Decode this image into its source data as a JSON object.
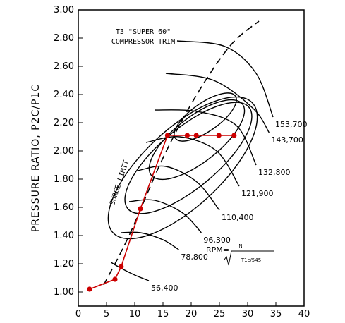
{
  "chart_data": {
    "type": "line",
    "title": "T3 \"SUPER 60\"",
    "subtitle": "COMPRESSOR TRIM",
    "xlabel": "",
    "ylabel": "PRESSURE RATIO, P2C/P1C",
    "xlim": [
      0,
      40
    ],
    "ylim": [
      0.9,
      3.0
    ],
    "x_ticks": [
      "0",
      "5",
      "10",
      "15",
      "20",
      "25",
      "30",
      "35",
      "40"
    ],
    "y_ticks": [
      "1.00",
      "1.20",
      "1.40",
      "1.60",
      "1.80",
      "2.00",
      "2.20",
      "2.40",
      "2.60",
      "2.80",
      "3.00"
    ],
    "surge_label": "SURGE LIMIT",
    "rpm_formula": {
      "prefix": "RPM=",
      "numerator": "N",
      "denominator": "T1c/545"
    },
    "speed_lines": [
      {
        "label": "56,400",
        "x": [
          5.8,
          7.5,
          10.0,
          12.5
        ],
        "y": [
          1.21,
          1.17,
          1.12,
          1.08
        ]
      },
      {
        "label": "78,800",
        "x": [
          7.5,
          11.0,
          15.0,
          17.8
        ],
        "y": [
          1.42,
          1.42,
          1.37,
          1.3
        ]
      },
      {
        "label": "96,300",
        "x": [
          9.0,
          13.5,
          18.5,
          21.8
        ],
        "y": [
          1.64,
          1.65,
          1.56,
          1.42
        ]
      },
      {
        "label": "110,400",
        "x": [
          10.5,
          15.5,
          21.0,
          25.0
        ],
        "y": [
          1.86,
          1.89,
          1.78,
          1.58
        ]
      },
      {
        "label": "121,900",
        "x": [
          12.0,
          18.0,
          24.5,
          28.5
        ],
        "y": [
          2.06,
          2.1,
          2.0,
          1.75
        ]
      },
      {
        "label": "132,800",
        "x": [
          13.5,
          21.0,
          28.0,
          31.5
        ],
        "y": [
          2.29,
          2.28,
          2.18,
          1.9
        ]
      },
      {
        "label": "143,700",
        "x": [
          15.5,
          24.0,
          31.0,
          33.8
        ],
        "y": [
          2.55,
          2.5,
          2.3,
          2.13
        ]
      },
      {
        "label": "153,700",
        "x": [
          17.5,
          26.0,
          31.5,
          34.5
        ],
        "y": [
          2.78,
          2.74,
          2.55,
          2.24
        ]
      }
    ],
    "surge_limit": {
      "x": [
        4.5,
        9.0,
        15.0,
        21.0,
        27.0,
        32.0
      ],
      "y": [
        1.05,
        1.4,
        1.95,
        2.4,
        2.75,
        2.92
      ]
    },
    "series": [
      {
        "x": [
          2.0,
          6.5,
          7.6,
          11.0,
          15.8,
          19.3,
          20.9,
          24.9,
          27.6
        ],
        "y": [
          1.02,
          1.09,
          1.18,
          1.59,
          2.11,
          2.11,
          2.11,
          2.11,
          2.11
        ],
        "color": "#cc0000"
      }
    ],
    "grid": false
  }
}
